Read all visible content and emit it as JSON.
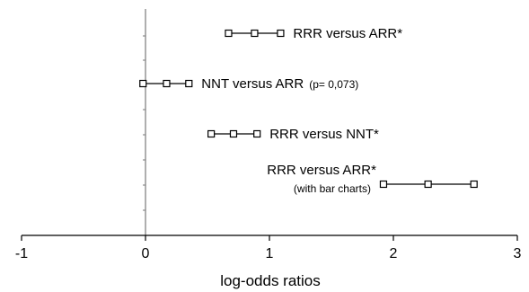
{
  "chart_data": {
    "type": "scatter",
    "xlabel": "log-odds ratios",
    "xlim": [
      -1,
      3
    ],
    "x_ticks": [
      "-1",
      "0",
      "1",
      "2",
      "3"
    ],
    "grid": false,
    "rows": [
      {
        "label": "RRR versus ARR*",
        "note": "",
        "low": 0.67,
        "estimate": 0.88,
        "high": 1.09
      },
      {
        "label": "NNT versus ARR",
        "note": "(p= 0,073)",
        "low": -0.02,
        "estimate": 0.17,
        "high": 0.35
      },
      {
        "label": "RRR versus NNT*",
        "note": "",
        "low": 0.53,
        "estimate": 0.71,
        "high": 0.9
      },
      {
        "label": "RRR versus ARR*",
        "note": "(with bar charts)",
        "low": 1.92,
        "estimate": 2.28,
        "high": 2.65
      }
    ]
  }
}
